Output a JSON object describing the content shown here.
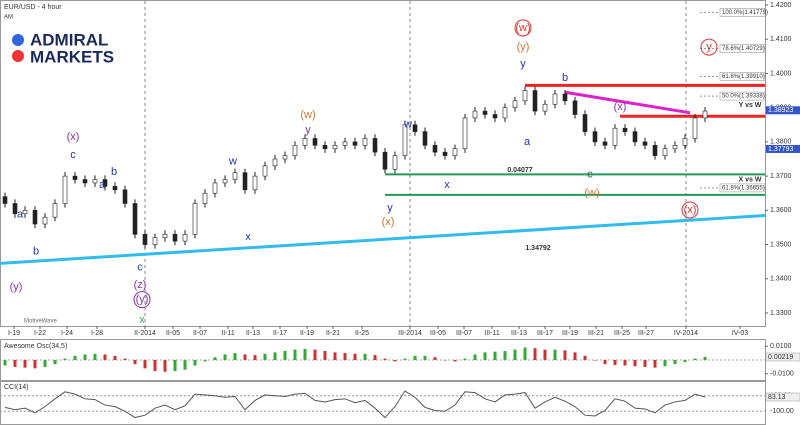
{
  "header": {
    "title": "EUR/USD - 4 hour",
    "sub": "AM",
    "logo": [
      "ADMIRAL",
      "MARKETS"
    ],
    "watermark": "MotiveWave"
  },
  "chart_data": [
    {
      "type": "candlestick",
      "xlim": [
        -0.5,
        76
      ],
      "ylim": [
        1.33,
        1.42
      ],
      "yticks": [
        {
          "value": 1.33,
          "label": "1.3300"
        },
        {
          "value": 1.34,
          "label": "1.3400"
        },
        {
          "value": 1.35,
          "label": "1.3500"
        },
        {
          "value": 1.36,
          "label": "1.3600"
        },
        {
          "value": 1.37,
          "label": "1.3700"
        },
        {
          "value": 1.38,
          "label": "1.3800"
        },
        {
          "value": 1.39,
          "label": "1.3900"
        },
        {
          "value": 1.4,
          "label": "1.4000"
        },
        {
          "value": 1.41,
          "label": "1.4100"
        },
        {
          "value": 1.42,
          "label": "1.4200"
        }
      ],
      "xticks": [
        {
          "value": 0.9,
          "label": "I-19"
        },
        {
          "value": 3.5,
          "label": "I-22"
        },
        {
          "value": 6.2,
          "label": "I-24"
        },
        {
          "value": 9.2,
          "label": "I-28"
        },
        {
          "value": 14,
          "label": "II-2014",
          "major": true
        },
        {
          "value": 16.8,
          "label": "II-05"
        },
        {
          "value": 19.5,
          "label": "II-07"
        },
        {
          "value": 22.3,
          "label": "II-11"
        },
        {
          "value": 24.8,
          "label": "II-13"
        },
        {
          "value": 27.5,
          "label": "II-17"
        },
        {
          "value": 30.2,
          "label": "II-19"
        },
        {
          "value": 32.8,
          "label": "II-21"
        },
        {
          "value": 35.7,
          "label": "II-25"
        },
        {
          "value": 40.5,
          "label": "III-2014",
          "major": true
        },
        {
          "value": 43.3,
          "label": "III-05"
        },
        {
          "value": 45.9,
          "label": "III-07"
        },
        {
          "value": 48.7,
          "label": "III-11"
        },
        {
          "value": 51.4,
          "label": "III-13"
        },
        {
          "value": 54,
          "label": "III-17"
        },
        {
          "value": 56.5,
          "label": "III-19"
        },
        {
          "value": 59.1,
          "label": "III-21"
        },
        {
          "value": 61.7,
          "label": "III-25"
        },
        {
          "value": 64.1,
          "label": "III-27"
        },
        {
          "value": 68.1,
          "label": "IV-2014",
          "major": true
        },
        {
          "value": 73.5,
          "label": "IV-03"
        }
      ],
      "color": "#222222",
      "open": [
        1.364,
        1.362,
        1.359,
        1.36,
        1.356,
        1.358,
        1.362,
        1.37,
        1.369,
        1.368,
        1.369,
        1.367,
        1.366,
        1.362,
        1.353,
        1.35,
        1.352,
        1.353,
        1.351,
        1.353,
        1.362,
        1.365,
        1.368,
        1.369,
        1.371,
        1.366,
        1.37,
        1.373,
        1.375,
        1.376,
        1.379,
        1.381,
        1.379,
        1.378,
        1.379,
        1.38,
        1.379,
        1.381,
        1.377,
        1.372,
        1.376,
        1.385,
        1.383,
        1.379,
        1.377,
        1.376,
        1.378,
        1.387,
        1.389,
        1.388,
        1.387,
        1.39,
        1.392,
        1.395,
        1.389,
        1.391,
        1.394,
        1.392,
        1.388,
        1.383,
        1.38,
        1.379,
        1.384,
        1.383,
        1.38,
        1.379,
        1.376,
        1.378,
        1.379,
        1.381,
        1.387
      ],
      "high": [
        1.3652,
        1.3632,
        1.3612,
        1.3612,
        1.3592,
        1.3632,
        1.3712,
        1.3712,
        1.3702,
        1.3702,
        1.3702,
        1.3682,
        1.3672,
        1.3632,
        1.3542,
        1.3532,
        1.3542,
        1.3542,
        1.3542,
        1.3632,
        1.3662,
        1.3692,
        1.3702,
        1.3722,
        1.3722,
        1.3712,
        1.3742,
        1.3762,
        1.3772,
        1.3802,
        1.3822,
        1.3822,
        1.3802,
        1.3802,
        1.3812,
        1.3812,
        1.3822,
        1.3822,
        1.3782,
        1.3772,
        1.3862,
        1.3862,
        1.3842,
        1.3802,
        1.3782,
        1.3792,
        1.3882,
        1.3902,
        1.3902,
        1.3892,
        1.3912,
        1.3932,
        1.3962,
        1.3962,
        1.3922,
        1.3952,
        1.3952,
        1.3932,
        1.3892,
        1.3842,
        1.3812,
        1.3852,
        1.3852,
        1.3842,
        1.3812,
        1.3802,
        1.3792,
        1.3802,
        1.3822,
        1.3882,
        1.3902
      ],
      "low": [
        1.3608,
        1.3578,
        1.3578,
        1.3548,
        1.3548,
        1.3568,
        1.3608,
        1.3678,
        1.3668,
        1.3668,
        1.3658,
        1.3648,
        1.3608,
        1.3518,
        1.3488,
        1.3488,
        1.3508,
        1.3498,
        1.3498,
        1.3518,
        1.3608,
        1.3638,
        1.3668,
        1.3678,
        1.3648,
        1.3648,
        1.3688,
        1.3718,
        1.3738,
        1.3748,
        1.3778,
        1.3778,
        1.3768,
        1.3768,
        1.3778,
        1.3778,
        1.3778,
        1.3758,
        1.3708,
        1.3708,
        1.3748,
        1.3818,
        1.3778,
        1.3758,
        1.3748,
        1.3748,
        1.3768,
        1.3858,
        1.3868,
        1.3858,
        1.3858,
        1.3888,
        1.3908,
        1.3878,
        1.3878,
        1.3898,
        1.3908,
        1.3868,
        1.3818,
        1.3788,
        1.3778,
        1.3778,
        1.3818,
        1.3788,
        1.3778,
        1.3748,
        1.3748,
        1.3768,
        1.3778,
        1.3798,
        1.3858
      ],
      "close": [
        1.362,
        1.359,
        1.36,
        1.356,
        1.358,
        1.362,
        1.37,
        1.369,
        1.368,
        1.369,
        1.367,
        1.366,
        1.362,
        1.353,
        1.35,
        1.352,
        1.353,
        1.351,
        1.353,
        1.362,
        1.365,
        1.368,
        1.369,
        1.371,
        1.366,
        1.37,
        1.373,
        1.375,
        1.376,
        1.379,
        1.381,
        1.379,
        1.378,
        1.379,
        1.38,
        1.379,
        1.381,
        1.377,
        1.372,
        1.376,
        1.385,
        1.383,
        1.379,
        1.377,
        1.376,
        1.378,
        1.387,
        1.389,
        1.388,
        1.387,
        1.39,
        1.392,
        1.395,
        1.389,
        1.391,
        1.394,
        1.392,
        1.388,
        1.383,
        1.38,
        1.379,
        1.384,
        1.383,
        1.38,
        1.379,
        1.376,
        1.378,
        1.379,
        1.381,
        1.387,
        1.389
      ],
      "trendlines": [
        {
          "color": "#33bbee",
          "width": 3,
          "x": [
            -0.5,
            76
          ],
          "y": [
            1.3445,
            1.3585
          ]
        },
        {
          "color": "#ee2222",
          "width": 3,
          "x": [
            52,
            76
          ],
          "y": [
            1.3965,
            1.3965
          ]
        },
        {
          "color": "#ee2222",
          "width": 3,
          "x": [
            61.5,
            76
          ],
          "y": [
            1.3875,
            1.3875
          ]
        },
        {
          "color": "#229955",
          "width": 2,
          "x": [
            38,
            76
          ],
          "y": [
            1.3705,
            1.3705
          ]
        },
        {
          "color": "#229955",
          "width": 2,
          "x": [
            38,
            76
          ],
          "y": [
            1.3645,
            1.3645
          ]
        },
        {
          "color": "#dd22cc",
          "width": 3,
          "x": [
            56,
            68.5
          ],
          "y": [
            1.3945,
            1.3885
          ]
        }
      ],
      "fib": [
        {
          "value": 1.41779,
          "label": "100.0%(1.41779)"
        },
        {
          "value": 1.40729,
          "label": "78.6%(1.40729)"
        },
        {
          "value": 1.3991,
          "label": "61.8%(1.39910)"
        },
        {
          "value": 1.39338,
          "label": "50.0%(1.39338)"
        },
        {
          "value": 1.36655,
          "label": "61.8%(1.36655)"
        }
      ],
      "price_tags": [
        {
          "value": 1.38923,
          "label": "1.38923",
          "color": "#3355cc"
        },
        {
          "value": 1.37793,
          "label": "1.37793",
          "color": "#3355cc"
        }
      ],
      "annotations": [
        {
          "text": "Y vs W",
          "x": 74.5,
          "y": 1.3908
        },
        {
          "text": "X vs W",
          "x": 74.5,
          "y": 1.3689
        },
        {
          "text": "0.04077",
          "x": 51.5,
          "y": 1.3718
        },
        {
          "text": "1.34792",
          "x": 53.3,
          "y": 1.349
        }
      ],
      "waves": [
        {
          "text": "(w)",
          "x": 51.8,
          "y": 1.4133,
          "color": "#dd3333",
          "circle": true
        },
        {
          "text": "(y)",
          "x": 51.8,
          "y": 1.4077,
          "color": "#cc7733"
        },
        {
          "text": "y",
          "x": 51.8,
          "y": 1.4028,
          "color": "#2233aa"
        },
        {
          "text": "b",
          "x": 56,
          "y": 1.3987,
          "color": "#2233aa"
        },
        {
          "text": "a",
          "x": 52.2,
          "y": 1.38,
          "color": "#2233aa"
        },
        {
          "text": "(x)",
          "x": 61.5,
          "y": 1.3902,
          "color": "#8833aa"
        },
        {
          "text": "c",
          "x": 58.5,
          "y": 1.3704,
          "color": "#226655"
        },
        {
          "text": "(w)",
          "x": 58.7,
          "y": 1.3651,
          "color": "#cc7733"
        },
        {
          "text": "(x)",
          "x": 68.5,
          "y": 1.3601,
          "color": "#dd3333",
          "circle": true
        },
        {
          "text": "y",
          "x": 70.4,
          "y": 1.4077,
          "color": "#dd3333",
          "circle": true
        },
        {
          "text": "(w)",
          "x": 30.3,
          "y": 1.3879,
          "color": "#cc7733"
        },
        {
          "text": "y",
          "x": 30.3,
          "y": 1.3835,
          "color": "#8833aa"
        },
        {
          "text": "w",
          "x": 22.8,
          "y": 1.3742,
          "color": "#2233aa"
        },
        {
          "text": "x",
          "x": 24.3,
          "y": 1.3522,
          "color": "#2233aa"
        },
        {
          "text": "(x)",
          "x": 38.3,
          "y": 1.3566,
          "color": "#cc7733"
        },
        {
          "text": "y",
          "x": 38.5,
          "y": 1.3607,
          "color": "#2233aa"
        },
        {
          "text": "w",
          "x": 40.3,
          "y": 1.385,
          "color": "#2233aa"
        },
        {
          "text": "x",
          "x": 44.2,
          "y": 1.3674,
          "color": "#2233aa"
        },
        {
          "text": "(x)",
          "x": 6.8,
          "y": 1.3814,
          "color": "#8833aa"
        },
        {
          "text": "c",
          "x": 6.8,
          "y": 1.3762,
          "color": "#2233aa"
        },
        {
          "text": "b",
          "x": 10.9,
          "y": 1.3712,
          "color": "#2233aa"
        },
        {
          "text": "a",
          "x": 9.7,
          "y": 1.3674,
          "color": "#2233aa"
        },
        {
          "text": "a",
          "x": 1.5,
          "y": 1.3587,
          "color": "#2233aa"
        },
        {
          "text": "b",
          "x": 3.1,
          "y": 1.3479,
          "color": "#2233aa"
        },
        {
          "text": "(y)",
          "x": 1.1,
          "y": 1.3376,
          "color": "#8833aa"
        },
        {
          "text": "c",
          "x": 13.5,
          "y": 1.3432,
          "color": "#2233aa"
        },
        {
          "text": "(z)",
          "x": 13.5,
          "y": 1.3382,
          "color": "#8833aa"
        },
        {
          "text": "(y)",
          "x": 13.7,
          "y": 1.3339,
          "color": "#8833aa",
          "circle": true
        },
        {
          "text": "x",
          "x": 13.7,
          "y": 1.328,
          "color": "#33aa66"
        }
      ]
    },
    {
      "type": "histogram-osc",
      "title": "Awesome Osc(34,5)",
      "ylim": [
        -0.013,
        0.013
      ],
      "yticks": [
        {
          "value": 0.01,
          "label": "0.0100"
        },
        {
          "value": -0.01,
          "label": "-0.0100"
        }
      ],
      "tag": {
        "value": 0.00219,
        "label": "0.00219"
      },
      "up_color": "#33aa33",
      "down_color": "#cc3333",
      "values": [
        -0.004,
        -0.005,
        -0.0055,
        -0.006,
        -0.005,
        -0.003,
        0.001,
        0.003,
        0.004,
        0.0045,
        0.004,
        0.003,
        0.001,
        -0.003,
        -0.006,
        -0.008,
        -0.0085,
        -0.008,
        -0.007,
        -0.004,
        -0.001,
        0.002,
        0.004,
        0.005,
        0.004,
        0.0035,
        0.0045,
        0.0055,
        0.0065,
        0.0075,
        0.008,
        0.0075,
        0.0065,
        0.0055,
        0.005,
        0.0045,
        0.0045,
        0.0035,
        0.001,
        -0.001,
        0.001,
        0.003,
        0.003,
        0.002,
        0,
        -0.001,
        0.001,
        0.004,
        0.0055,
        0.006,
        0.0065,
        0.0075,
        0.009,
        0.0085,
        0.0075,
        0.0075,
        0.007,
        0.0055,
        0.003,
        0,
        -0.003,
        -0.0035,
        -0.004,
        -0.0045,
        -0.005,
        -0.0055,
        -0.0045,
        -0.003,
        -0.0015,
        0.001,
        0.0022
      ]
    },
    {
      "type": "line-osc",
      "title": "CCI(14)",
      "ylim": [
        -250,
        250
      ],
      "yticks": [
        {
          "value": 100,
          "label": "100.00"
        },
        {
          "value": -100,
          "label": "-100.00"
        }
      ],
      "tag": {
        "value": 83.13,
        "label": "83.13"
      },
      "color": "#555555",
      "values": [
        -50,
        -80,
        -60,
        -120,
        -40,
        60,
        150,
        120,
        60,
        50,
        -20,
        -40,
        -100,
        -180,
        -150,
        -60,
        -20,
        -80,
        -30,
        120,
        110,
        100,
        80,
        90,
        -80,
        40,
        110,
        100,
        90,
        120,
        130,
        40,
        20,
        50,
        60,
        10,
        40,
        -60,
        -180,
        -40,
        160,
        80,
        -50,
        -90,
        -100,
        -20,
        150,
        140,
        60,
        20,
        110,
        120,
        140,
        -60,
        20,
        80,
        30,
        -40,
        -150,
        -160,
        -90,
        60,
        30,
        -60,
        -70,
        -120,
        -20,
        20,
        40,
        120,
        83
      ]
    }
  ]
}
